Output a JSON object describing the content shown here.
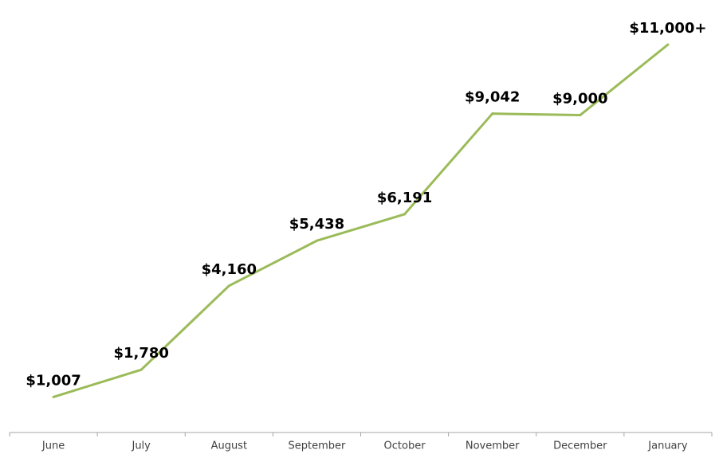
{
  "chart_data": {
    "type": "line",
    "categories": [
      "June",
      "July",
      "August",
      "September",
      "October",
      "November",
      "December",
      "January"
    ],
    "values": [
      1007,
      1780,
      4160,
      5438,
      6191,
      9042,
      9000,
      11000
    ],
    "value_labels": [
      "$1,007",
      "$1,780",
      "$4,160",
      "$5,438",
      "$6,191",
      "$9,042",
      "$9,000",
      "$11,000+"
    ],
    "color": "#9bbb59"
  }
}
